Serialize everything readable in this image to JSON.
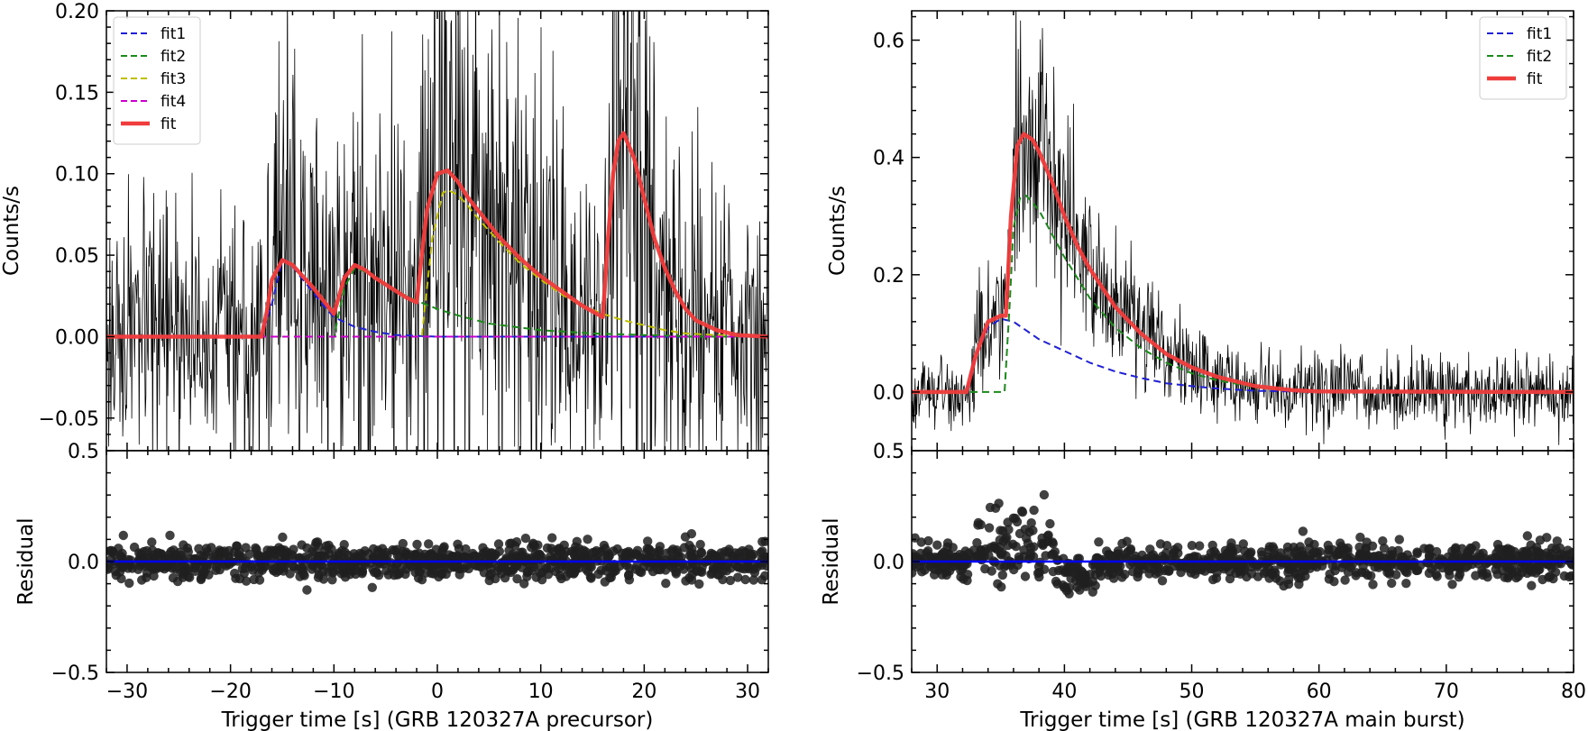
{
  "chart_data": [
    {
      "type": "line",
      "panel": "top",
      "xlabel": "",
      "ylabel": "Counts/s",
      "xlim": [
        -32,
        32
      ],
      "ylim": [
        -0.07,
        0.2
      ],
      "x_ticks": [
        -30,
        -20,
        -10,
        0,
        10,
        20,
        30
      ],
      "y_ticks": [
        -0.05,
        0.0,
        0.05,
        0.1,
        0.15,
        0.2
      ],
      "y_tick_labels": [
        "−0.05",
        "0.00",
        "0.05",
        "0.10",
        "0.15",
        "0.20"
      ],
      "legend_placement": "upper left",
      "colors": {
        "fit1": "#1f1fd6",
        "fit2": "#1a8a1a",
        "fit3": "#bfbf00",
        "fit4": "#cc00cc",
        "fit": "#f03c3c",
        "data": "#000000"
      },
      "series": [
        {
          "name": "fit1",
          "style": "dashed",
          "color": "#1f1fd6",
          "x": [
            -32,
            -17,
            -16,
            -15,
            -14,
            -13,
            -12,
            -11,
            -10,
            -8,
            -6,
            -4,
            -2,
            0,
            5,
            10,
            20,
            32
          ],
          "y": [
            0,
            0,
            0.02,
            0.047,
            0.043,
            0.035,
            0.027,
            0.019,
            0.012,
            0.006,
            0.003,
            0.001,
            0.0005,
            0,
            0,
            0,
            0,
            0
          ]
        },
        {
          "name": "fit2",
          "style": "dashed",
          "color": "#1a8a1a",
          "x": [
            -32,
            -10,
            -9,
            -8,
            -7,
            -6,
            -5,
            -4,
            -2,
            0,
            2,
            5,
            10,
            15,
            20,
            25,
            32
          ],
          "y": [
            0,
            0,
            0.03,
            0.042,
            0.04,
            0.036,
            0.032,
            0.028,
            0.022,
            0.017,
            0.013,
            0.008,
            0.004,
            0.002,
            0.001,
            0,
            0
          ]
        },
        {
          "name": "fit3",
          "style": "dashed",
          "color": "#bfbf00",
          "x": [
            -32,
            -1.5,
            -0.5,
            0.5,
            1,
            2,
            3,
            4,
            6,
            8,
            10,
            12,
            14,
            16,
            18,
            20,
            22,
            24,
            27,
            32
          ],
          "y": [
            0,
            0,
            0.06,
            0.088,
            0.09,
            0.087,
            0.08,
            0.072,
            0.058,
            0.045,
            0.035,
            0.026,
            0.019,
            0.014,
            0.01,
            0.007,
            0.004,
            0.002,
            0.001,
            0
          ]
        },
        {
          "name": "fit4",
          "style": "dashed",
          "color": "#cc00cc",
          "x": [
            -32,
            32
          ],
          "y": [
            0,
            0
          ]
        },
        {
          "name": "fit",
          "style": "solid-thick",
          "color": "#f03c3c",
          "x": [
            -32,
            -17,
            -16.5,
            -16,
            -15,
            -14,
            -13,
            -12,
            -11,
            -10,
            -9,
            -8,
            -7,
            -6,
            -5,
            -4,
            -3,
            -2,
            -1.5,
            -1,
            0,
            1,
            2,
            3,
            4,
            6,
            8,
            10,
            12,
            14,
            16,
            16.5,
            17,
            17.5,
            18,
            19,
            20,
            21,
            22,
            23,
            24,
            25,
            27,
            29,
            32
          ],
          "y": [
            0,
            0,
            0.015,
            0.035,
            0.047,
            0.044,
            0.037,
            0.03,
            0.022,
            0.014,
            0.036,
            0.044,
            0.041,
            0.036,
            0.032,
            0.028,
            0.024,
            0.021,
            0.05,
            0.078,
            0.1,
            0.102,
            0.095,
            0.085,
            0.077,
            0.061,
            0.048,
            0.037,
            0.028,
            0.019,
            0.012,
            0.06,
            0.1,
            0.12,
            0.125,
            0.11,
            0.085,
            0.06,
            0.042,
            0.028,
            0.017,
            0.01,
            0.004,
            0.001,
            0
          ]
        }
      ],
      "data_trace": {
        "name": "",
        "style": "thin-noisy-line",
        "color": "#000000",
        "x_range": [
          -32,
          32
        ],
        "approx_noise_amplitude": 0.05
      }
    },
    {
      "type": "scatter",
      "panel": "bottom",
      "xlabel": "Trigger time [s] (GRB 120327A precursor)",
      "ylabel": "Residual",
      "xlim": [
        -32,
        32
      ],
      "ylim": [
        -0.5,
        0.5
      ],
      "x_ticks": [
        -30,
        -20,
        -10,
        0,
        10,
        20,
        30
      ],
      "y_ticks": [
        -0.5,
        0.0,
        0.5
      ],
      "y_tick_labels": [
        "−0.5",
        "0.0",
        "0.5"
      ],
      "x_tick_labels": [
        "−30",
        "−20",
        "−10",
        "0",
        "10",
        "20",
        "30"
      ],
      "zero_line_color": "#0000ff",
      "residual_spread": 0.04
    },
    {
      "type": "line",
      "panel": "top",
      "xlabel": "",
      "ylabel": "Counts/s",
      "xlim": [
        28,
        80
      ],
      "ylim": [
        -0.1,
        0.65
      ],
      "x_ticks": [
        30,
        40,
        50,
        60,
        70,
        80
      ],
      "y_ticks": [
        0.0,
        0.2,
        0.4,
        0.6
      ],
      "y_tick_labels": [
        "0.0",
        "0.2",
        "0.4",
        "0.6"
      ],
      "legend_placement": "upper right",
      "series": [
        {
          "name": "fit1",
          "style": "dashed",
          "color": "#1f1fd6",
          "x": [
            28,
            32.3,
            33,
            34,
            35,
            36,
            37,
            38,
            40,
            42,
            44,
            46,
            48,
            50,
            52,
            55,
            60,
            80
          ],
          "y": [
            0,
            0,
            0.06,
            0.11,
            0.125,
            0.12,
            0.105,
            0.09,
            0.07,
            0.05,
            0.035,
            0.024,
            0.015,
            0.01,
            0.006,
            0.002,
            0,
            0
          ]
        },
        {
          "name": "fit2",
          "style": "dashed",
          "color": "#1a8a1a",
          "x": [
            28,
            35.3,
            35.7,
            36,
            36.5,
            37,
            38,
            39,
            40,
            42,
            44,
            46,
            48,
            50,
            52,
            55,
            60,
            80
          ],
          "y": [
            0,
            0,
            0.15,
            0.28,
            0.33,
            0.335,
            0.31,
            0.27,
            0.23,
            0.16,
            0.11,
            0.075,
            0.05,
            0.032,
            0.02,
            0.008,
            0.001,
            0
          ]
        },
        {
          "name": "fit",
          "style": "solid-thick",
          "color": "#f03c3c",
          "x": [
            28,
            32.3,
            33,
            34,
            35,
            35.4,
            35.8,
            36.3,
            36.8,
            37.5,
            38,
            39,
            40,
            41,
            42,
            44,
            46,
            48,
            50,
            52,
            55,
            58,
            60,
            80
          ],
          "y": [
            0,
            0,
            0.06,
            0.12,
            0.13,
            0.13,
            0.3,
            0.42,
            0.44,
            0.43,
            0.41,
            0.36,
            0.3,
            0.25,
            0.21,
            0.145,
            0.1,
            0.065,
            0.042,
            0.026,
            0.01,
            0.003,
            0.001,
            0
          ]
        }
      ],
      "data_trace": {
        "name": "",
        "style": "thin-noisy-line",
        "color": "#000000",
        "x_range": [
          28,
          80
        ],
        "approx_noise_amplitude": 0.05
      }
    },
    {
      "type": "scatter",
      "panel": "bottom",
      "xlabel": "Trigger time [s] (GRB 120327A main burst)",
      "ylabel": "Residual",
      "xlim": [
        28,
        80
      ],
      "ylim": [
        -0.5,
        0.5
      ],
      "x_ticks": [
        30,
        40,
        50,
        60,
        70,
        80
      ],
      "y_ticks": [
        -0.5,
        0.0,
        0.5
      ],
      "y_tick_labels": [
        "−0.5",
        "0.0",
        "0.5"
      ],
      "x_tick_labels": [
        "30",
        "40",
        "50",
        "60",
        "70",
        "80"
      ],
      "zero_line_color": "#0000ff",
      "residual_spread": 0.04
    }
  ]
}
